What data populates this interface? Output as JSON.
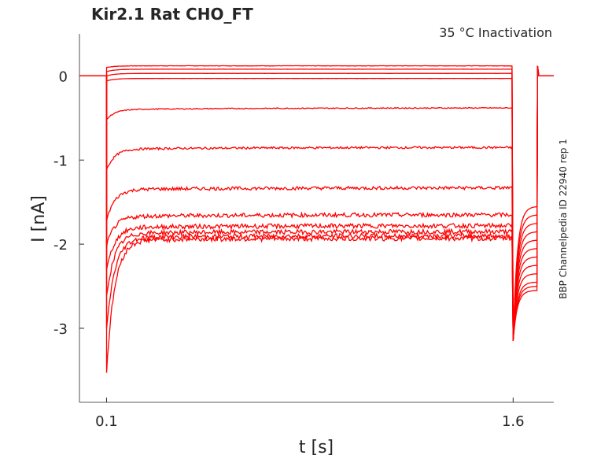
{
  "chart_data": {
    "type": "line",
    "title": "Kir2.1  Rat  CHO_FT",
    "subtitle": "35 °C  Inactivation",
    "side_label": "BBP Channelpedia ID 22940 rep 1",
    "xlabel": "t [s]",
    "ylabel": "I [nA]",
    "xlim": [
      0,
      1.75
    ],
    "ylim": [
      -3.88,
      0.5
    ],
    "xticks": [
      {
        "value": 0.1,
        "label": "0.1"
      },
      {
        "value": 1.6,
        "label": "1.6"
      }
    ],
    "yticks": [
      {
        "value": 0,
        "label": "0"
      },
      {
        "value": -1,
        "label": "-1"
      },
      {
        "value": -2,
        "label": "-2"
      },
      {
        "value": -3,
        "label": "-3"
      }
    ],
    "grid": false,
    "line_color": "#ff0000",
    "step_start": 0.1,
    "step_end": 1.6,
    "tail_end": 1.69,
    "tail_peak": -3.15,
    "series": [
      {
        "steady": 0.12,
        "peak": 0.1,
        "tail": -1.55
      },
      {
        "steady": 0.08,
        "peak": 0.05,
        "tail": -1.65
      },
      {
        "steady": 0.03,
        "peak": 0.0,
        "tail": -1.75
      },
      {
        "steady": -0.03,
        "peak": -0.06,
        "tail": -1.85
      },
      {
        "steady": -0.38,
        "peak": -0.5,
        "tail": -1.95
      },
      {
        "steady": -0.85,
        "peak": -1.1,
        "tail": -2.05
      },
      {
        "steady": -1.33,
        "peak": -1.7,
        "tail": -2.15
      },
      {
        "steady": -1.65,
        "peak": -2.0,
        "tail": -2.25
      },
      {
        "steady": -1.78,
        "peak": -2.3,
        "tail": -2.35
      },
      {
        "steady": -1.85,
        "peak": -2.6,
        "tail": -2.45
      },
      {
        "steady": -1.9,
        "peak": -3.0,
        "tail": -2.5
      },
      {
        "steady": -1.93,
        "peak": -3.5,
        "tail": -2.55
      }
    ]
  }
}
